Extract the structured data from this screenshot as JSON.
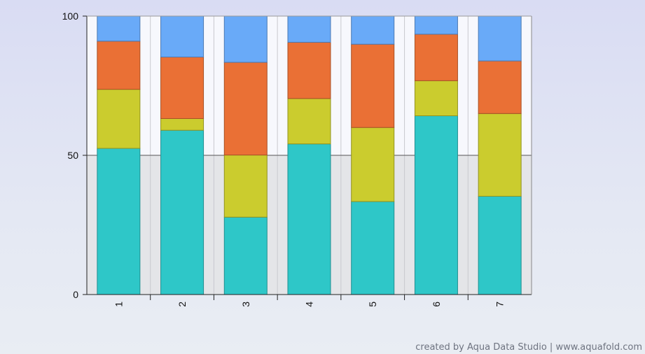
{
  "chart_data": {
    "type": "bar",
    "stacked": true,
    "categories": [
      "1",
      "2",
      "3",
      "4",
      "5",
      "6",
      "7"
    ],
    "series": [
      {
        "values": [
          52.5,
          59.0,
          27.8,
          54.1,
          33.4,
          64.2,
          35.3
        ],
        "color": "#2ec7c8"
      },
      {
        "values": [
          21.2,
          4.2,
          22.3,
          16.3,
          26.6,
          12.6,
          29.7
        ],
        "color": "#cbcc2e"
      },
      {
        "values": [
          17.3,
          22.1,
          33.3,
          20.2,
          29.9,
          16.7,
          18.9
        ],
        "color": "#ea7035"
      },
      {
        "values": [
          9.0,
          14.7,
          16.6,
          9.4,
          10.1,
          6.5,
          16.1
        ],
        "color": "#69aaf8"
      }
    ],
    "ylim": [
      0,
      100
    ],
    "yticks": [
      "0",
      "50",
      "100"
    ],
    "xlabel": "",
    "ylabel": "",
    "grid": true
  },
  "credit": "created by Aqua Data Studio | www.aquafold.com"
}
